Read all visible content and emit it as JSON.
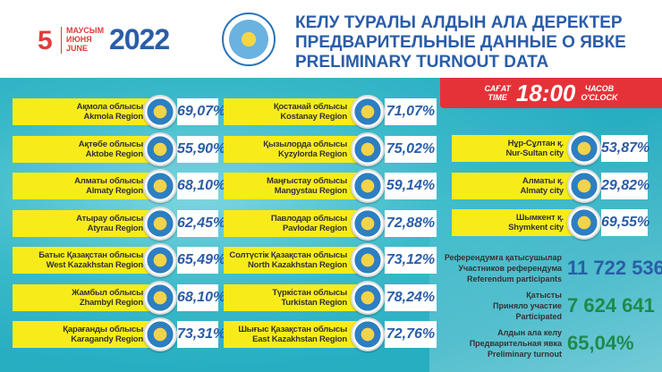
{
  "header": {
    "day": "5",
    "months": [
      "МАУСЫМ",
      "ИЮНЯ",
      "JUNE"
    ],
    "year": "2022",
    "titles": [
      "КЕЛУ ТУРАЛЫ АЛДЫН АЛА ДЕРЕКТЕР",
      "ПРЕДВАРИТЕЛЬНЫЕ ДАННЫЕ О ЯВКЕ",
      "PRELIMINARY TURNOUT DATA"
    ]
  },
  "time": {
    "label_kz": "САҒАТ",
    "label_en": "TIME",
    "value": "18:00",
    "label_ru": "ЧАСОВ",
    "label_en2": "O'CLOCK"
  },
  "columns": [
    [
      {
        "kz": "Ақмола облысы",
        "en": "Akmola Region",
        "pct": "69,07%"
      },
      {
        "kz": "Ақтөбе облысы",
        "en": "Aktobe Region",
        "pct": "55,90%"
      },
      {
        "kz": "Алматы облысы",
        "en": "Almaty Region",
        "pct": "68,10%"
      },
      {
        "kz": "Атырау облысы",
        "en": "Atyrau Region",
        "pct": "62,45%"
      },
      {
        "kz": "Батыс Қазақстан облысы",
        "en": "West Kazakhstan Region",
        "pct": "65,49%"
      },
      {
        "kz": "Жамбыл облысы",
        "en": "Zhambyl Region",
        "pct": "68,10%"
      },
      {
        "kz": "Қарағанды облысы",
        "en": "Karagandy Region",
        "pct": "73,31%"
      }
    ],
    [
      {
        "kz": "Қостанай облысы",
        "en": "Kostanay Region",
        "pct": "71,07%"
      },
      {
        "kz": "Қызылорда облысы",
        "en": "Kyzylorda Region",
        "pct": "75,02%"
      },
      {
        "kz": "Маңғыстау облысы",
        "en": "Mangystau Region",
        "pct": "59,14%"
      },
      {
        "kz": "Павлодар облысы",
        "en": "Pavlodar Region",
        "pct": "72,88%"
      },
      {
        "kz": "Солтүстік Қазақстан облысы",
        "en": "North Kazakhstan Region",
        "pct": "73,12%"
      },
      {
        "kz": "Түркістан облысы",
        "en": "Turkistan Region",
        "pct": "78,24%"
      },
      {
        "kz": "Шығыс Қазақстан облысы",
        "en": "East Kazakhstan Region",
        "pct": "72,76%"
      }
    ],
    [
      {
        "kz": "Нұр-Сұлтан қ.",
        "en": "Nur-Sultan city",
        "pct": "53,87%"
      },
      {
        "kz": "Алматы қ.",
        "en": "Almaty city",
        "pct": "29,82%"
      },
      {
        "kz": "Шымкент қ.",
        "en": "Shymkent city",
        "pct": "69,55%"
      }
    ]
  ],
  "stats": [
    {
      "lines": [
        "Референдумға қатысушылар",
        "Участников референдума",
        "Referendum participants"
      ],
      "value": "11 722 536",
      "color": "#2a5da8"
    },
    {
      "lines": [
        "Қатысты",
        "Приняло участие",
        "Participated"
      ],
      "value": "7 624 641",
      "color": "#1e8a4c"
    },
    {
      "lines": [
        "Алдын ала келу",
        "Предварительная явка",
        "Preliminary turnout"
      ],
      "value": "65,04%",
      "color": "#1e8a4c"
    }
  ]
}
